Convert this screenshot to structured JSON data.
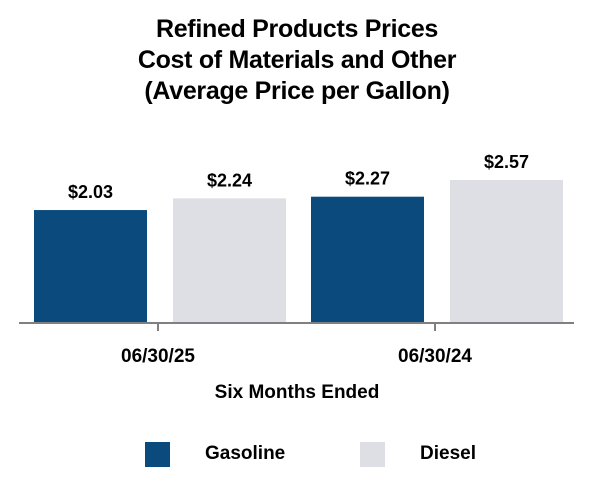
{
  "title_lines": [
    "Refined Products Prices",
    "Cost of Materials and Other",
    "(Average Price per Gallon)"
  ],
  "colors": {
    "gasoline": "#0a4a7d",
    "diesel": "#dedfe4",
    "axis": "#808080"
  },
  "chart_data": {
    "type": "bar",
    "title": "Refined Products Prices Cost of Materials and Other (Average Price per Gallon)",
    "categories": [
      "06/30/25",
      "06/30/24"
    ],
    "series": [
      {
        "name": "Gasoline",
        "values": [
          2.03,
          2.27
        ],
        "labels": [
          "$2.03",
          "$2.27"
        ]
      },
      {
        "name": "Diesel",
        "values": [
          2.24,
          2.57
        ],
        "labels": [
          "$2.24",
          "$2.57"
        ]
      }
    ],
    "xlabel": "Six Months Ended",
    "ylabel": "",
    "ylim": [
      0,
      2.57
    ],
    "grid": false,
    "legend": "bottom"
  }
}
